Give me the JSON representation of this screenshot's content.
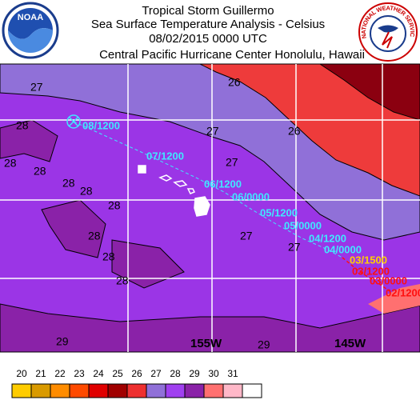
{
  "header": {
    "title": "Tropical Storm Guillermo",
    "subtitle": "Sea Surface Temperature Analysis - Celsius",
    "datetime": "08/02/2015 0000 UTC",
    "center": "Central Pacific Hurricane Center  Honolulu, Hawaii"
  },
  "logos": {
    "left": "NOAA",
    "right": "NATIONAL WEATHER SERVICE"
  },
  "track": {
    "labels": [
      "08/1200",
      "07/1200",
      "06/1200",
      "06/0000",
      "05/1200",
      "05/0000",
      "04/1200",
      "04/0000",
      "03/1500",
      "03/1200",
      "03/0000",
      "02/1200"
    ],
    "colors": [
      "#40e8ff",
      "#40e8ff",
      "#40e8ff",
      "#40e8ff",
      "#40e8ff",
      "#40e8ff",
      "#40e8ff",
      "#40e8ff",
      "#ffd000",
      "#ff1010",
      "#ff1010",
      "#ff1010"
    ]
  },
  "contour_labels": [
    "27",
    "26",
    "28",
    "28",
    "28",
    "28",
    "28",
    "27",
    "26",
    "27",
    "28",
    "28",
    "28",
    "28",
    "27",
    "27",
    "29",
    "29"
  ],
  "longitude_labels": [
    "155W",
    "145W"
  ],
  "color_scale": {
    "labels": [
      "20",
      "21",
      "22",
      "23",
      "24",
      "25",
      "26",
      "27",
      "28",
      "29",
      "30",
      "31"
    ],
    "colors": [
      "#ffcc00",
      "#d99a00",
      "#ff8c00",
      "#ff4a00",
      "#e00000",
      "#a00000",
      "#ee3030",
      "#9070d8",
      "#a040f0",
      "#8a22a8",
      "#ff7070",
      "#ffb8c8",
      "#ffffff"
    ]
  }
}
